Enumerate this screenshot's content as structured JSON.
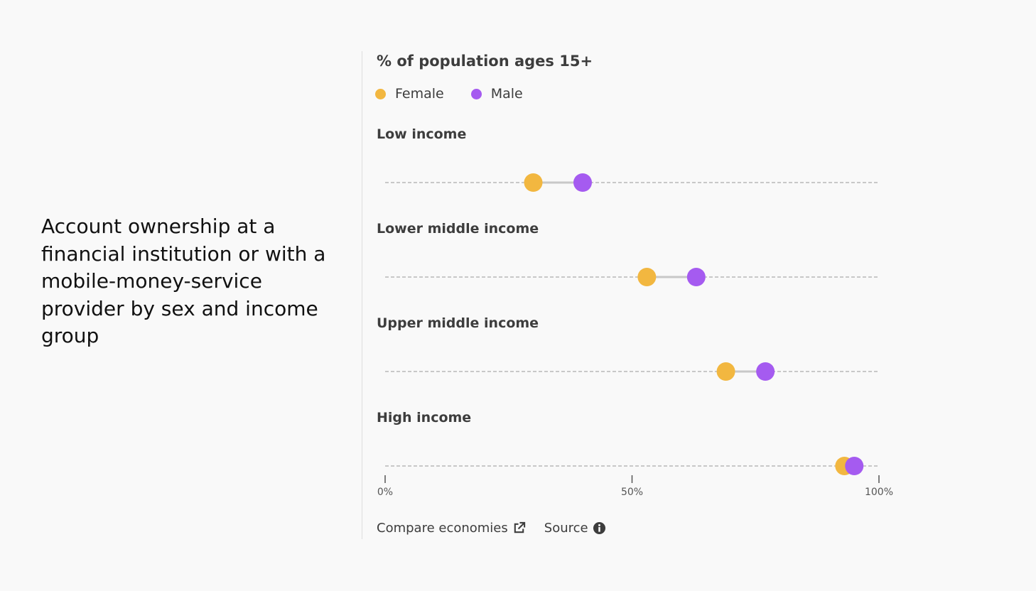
{
  "chart_title": "Account ownership at a financial institution or with a mobile-money-service provider by sex and income group",
  "chart_header": "% of population ages 15+",
  "footer": {
    "compare_label": "Compare economies",
    "compare_icon": "external-link-icon",
    "source_label": "Source",
    "source_icon": "info-icon"
  },
  "colors": {
    "female": "#f2b740",
    "male": "#a55bf0",
    "background": "#f9f9f9"
  },
  "chart_data": {
    "type": "dot-plot",
    "title": "Account ownership at a financial institution or with a mobile-money-service provider by sex and income group",
    "ylabel": "% of population ages 15+",
    "xlim": [
      0,
      100
    ],
    "xticks": [
      "0%",
      "50%",
      "100%"
    ],
    "xtick_values": [
      0,
      50,
      100
    ],
    "legend": "top-left",
    "categories": [
      "Low income",
      "Lower middle income",
      "Upper middle income",
      "High income"
    ],
    "series": [
      {
        "name": "Female",
        "values": [
          30,
          53,
          69,
          93
        ]
      },
      {
        "name": "Male",
        "values": [
          40,
          63,
          77,
          95
        ]
      }
    ]
  }
}
